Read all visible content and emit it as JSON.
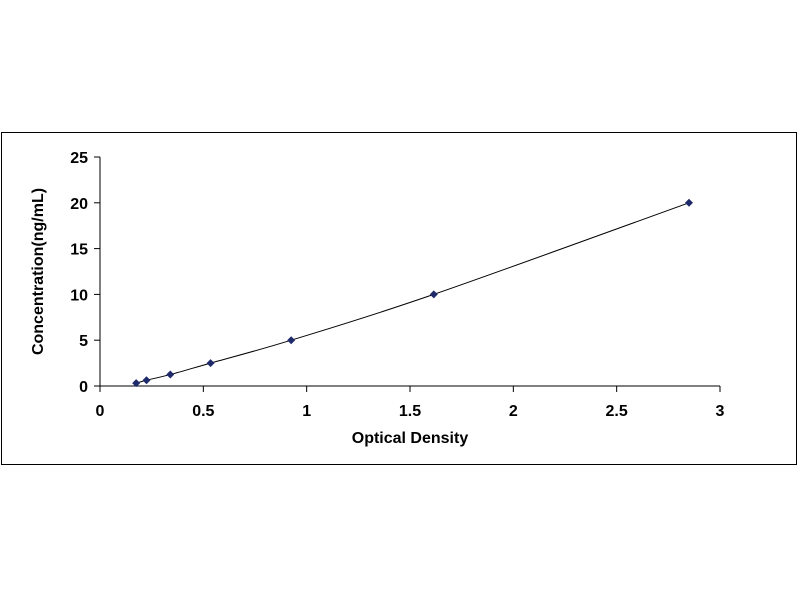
{
  "chart_data": {
    "type": "scatter",
    "title": "",
    "xlabel": "Optical Density",
    "ylabel": "Concentration(ng/mL)",
    "xlim": [
      0,
      3
    ],
    "ylim": [
      0,
      25
    ],
    "x_ticks": [
      "0",
      "0.5",
      "1",
      "1.5",
      "2",
      "2.5",
      "3"
    ],
    "y_ticks": [
      "0",
      "5",
      "10",
      "15",
      "20",
      "25"
    ],
    "grid": false,
    "legend": "none",
    "series": [
      {
        "points": [
          {
            "x": 0.175,
            "y": 0.31
          },
          {
            "x": 0.225,
            "y": 0.63
          },
          {
            "x": 0.34,
            "y": 1.25
          },
          {
            "x": 0.535,
            "y": 2.5
          },
          {
            "x": 0.925,
            "y": 5
          },
          {
            "x": 1.615,
            "y": 10
          },
          {
            "x": 2.85,
            "y": 20
          }
        ],
        "color": "#1f2a6b",
        "marker": "diamond",
        "trendline": "smooth"
      }
    ]
  }
}
